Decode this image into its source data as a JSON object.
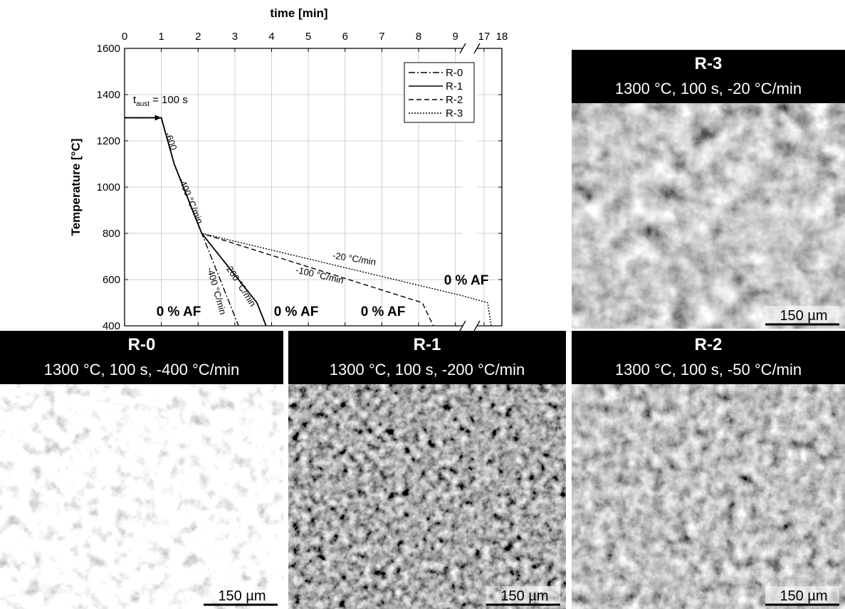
{
  "chart_data": {
    "type": "line",
    "x_label": "time [min]",
    "y_label": "Temperature [°C]",
    "xlim": [
      0,
      18
    ],
    "x_break": [
      9.2,
      16.6
    ],
    "xticks": [
      0,
      1,
      2,
      3,
      4,
      5,
      6,
      7,
      8,
      9,
      17,
      18
    ],
    "ylim": [
      400,
      1600
    ],
    "yticks": [
      400,
      600,
      800,
      1000,
      1200,
      1400,
      1600
    ],
    "grid": true,
    "legend": "upper right",
    "series": [
      {
        "name": "R-0",
        "color": "#000000",
        "style": "dash-dot",
        "x": [
          0,
          1,
          1.35,
          2.1,
          3.1
        ],
        "values": [
          1300,
          1300,
          1100,
          800,
          400
        ]
      },
      {
        "name": "R-1",
        "color": "#000000",
        "style": "solid",
        "x": [
          0,
          1,
          1.35,
          2.1,
          3.6,
          3.85
        ],
        "values": [
          1300,
          1300,
          1100,
          800,
          500,
          400
        ]
      },
      {
        "name": "R-2",
        "color": "#000000",
        "style": "dashed",
        "x": [
          0,
          1,
          1.35,
          2.1,
          8.1,
          8.4
        ],
        "values": [
          1300,
          1300,
          1100,
          800,
          500,
          400
        ]
      },
      {
        "name": "R-3",
        "color": "#000000",
        "style": "dotted",
        "x": [
          0,
          1,
          1.35,
          2.1,
          9.2,
          17.2,
          17.4
        ],
        "values": [
          1300,
          1300,
          1100,
          800,
          530,
          500,
          400
        ]
      }
    ],
    "t_aust": {
      "symbol": "t",
      "subscript": "aust",
      "text": "= 100 s"
    },
    "annotations": [
      "-600",
      "-400 °C/min",
      "-200 °C/min",
      "-400 °C/min",
      "-100 °C/min",
      "-20 °C/min",
      "0 % AF",
      "0 % AF",
      "0 % AF",
      "0 % AF"
    ]
  },
  "panels": [
    {
      "title": "R-3",
      "subtitle": "1300 °C, 100 s, -20 °C/min",
      "scale_bar": "150 µm"
    },
    {
      "title": "R-0",
      "subtitle": "1300 °C, 100 s, -400 °C/min",
      "scale_bar": "150 µm"
    },
    {
      "title": "R-1",
      "subtitle": "1300 °C, 100 s, -200 °C/min",
      "scale_bar": "150 µm"
    },
    {
      "title": "R-2",
      "subtitle": "1300 °C, 100 s, -50 °C/min",
      "scale_bar": "150 µm"
    }
  ]
}
